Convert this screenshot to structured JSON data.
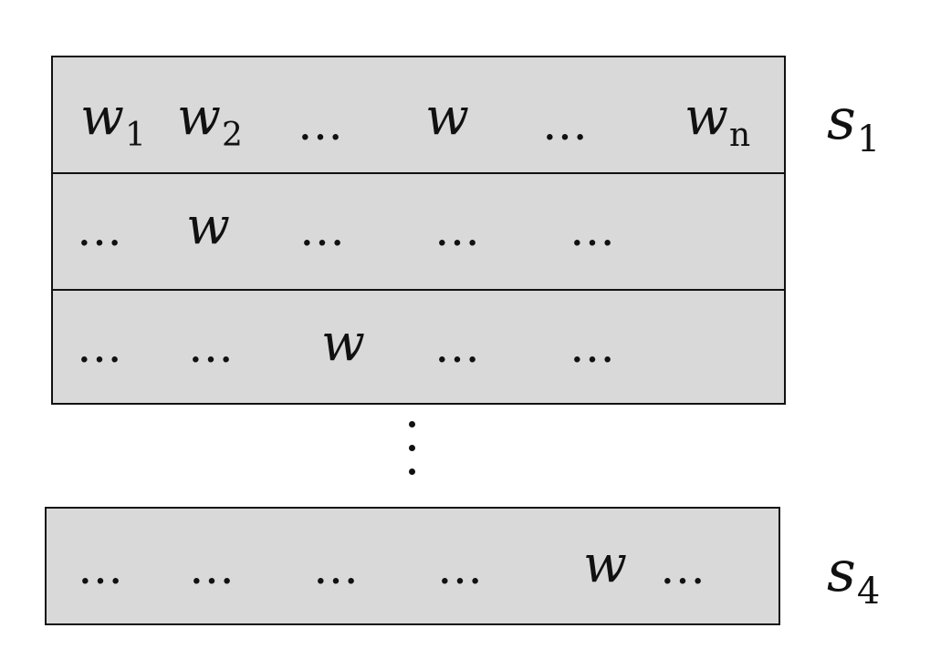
{
  "figure": {
    "top_block": {
      "row1": {
        "w1_base": "w",
        "w1_sub": "1",
        "w2_base": "w",
        "w2_sub": "2",
        "dots_a": "…",
        "w": "w",
        "dots_b": "…",
        "wn_base": "w",
        "wn_sub": "n"
      },
      "row2": {
        "dots_a": "…",
        "w": "w",
        "dots_b": "…",
        "dots_c": "…",
        "dots_d": "…"
      },
      "row3": {
        "dots_a": "…",
        "dots_b": "…",
        "w": "w",
        "dots_c": "…",
        "dots_d": "…"
      },
      "label_base": "s",
      "label_sub": "1"
    },
    "continuation": "⋮",
    "bottom_block": {
      "row1": {
        "dots_a": "…",
        "dots_b": "…",
        "dots_c": "…",
        "dots_d": "…",
        "w": "w",
        "dots_e": "…"
      },
      "label_base": "s",
      "label_sub": "4"
    },
    "colors": {
      "block_fill": "#d9d9d9",
      "stroke": "#111111",
      "background": "#ffffff"
    }
  }
}
